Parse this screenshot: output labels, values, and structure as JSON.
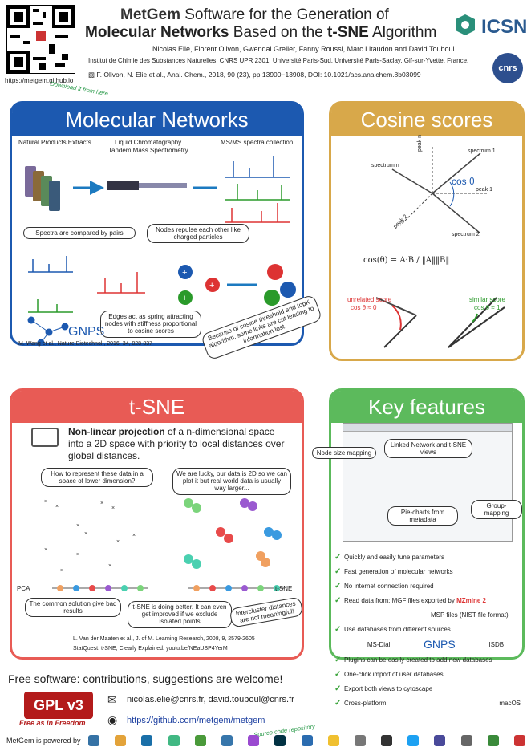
{
  "header": {
    "title_brand": "MetGem",
    "title_rest1": "Software for the Generation of",
    "title_bold1": "Molecular Networks",
    "title_mid": "Based on the",
    "title_bold2": "t-SNE",
    "title_end": "Algorithm",
    "authors": "Nicolas Elie, Florent Olivon, Gwendal Grelier, Fanny Roussi, Marc Litaudon and David Touboul",
    "institute": "Institut de Chimie des Substances Naturelles, CNRS UPR 2301, Université Paris-Sud, Université Paris-Saclay, Gif-sur-Yvette, France.",
    "citation": "F. Olivon, N. Elie et al., Anal. Chem., 2018, 90 (23), pp 13900−13908, DOI: 10.1021/acs.analchem.8b03099",
    "url": "https://metgem.github.io",
    "download": "Download it from here",
    "icsn": "ICSN",
    "cnrs": "cnrs"
  },
  "molecular_networks": {
    "title": "Molecular Networks",
    "step1": "Natural Products Extracts",
    "step2a": "Liquid Chromatography",
    "step2b": "Tandem Mass Spectrometry",
    "step3": "MS/MS spectra collection",
    "bubble_pairs": "Spectra are compared by pairs",
    "bubble_repulse": "Nodes repulse each other like charged particles",
    "bubble_spring": "Edges act as spring attracting nodes with stiffness proportional to cosine scores",
    "warning": "Because of cosine threshold and topK algorithm, some links are cut leading to information lost",
    "gnps": "GNPS",
    "ref": "M. Wang et al., Nature Biotechnol., 2016, 34, 828-837"
  },
  "cosine": {
    "title": "Cosine scores",
    "spectrum1": "spectrum 1",
    "spectrum2": "spectrum 2",
    "spectrumn": "spectrum n",
    "peak1": "peak 1",
    "peak2": "peak 2",
    "peakn": "peak n",
    "theta": "cos θ",
    "formula": "cos(θ) = A·B / ‖A‖‖B‖",
    "unrelated": "unrelated score",
    "unrelated_val": "cos θ ≈ 0",
    "similar": "similar score",
    "similar_val": "cos θ ≈ 1"
  },
  "tsne": {
    "title": "t-SNE",
    "desc_bold": "Non-linear projection",
    "desc": "of a n-dimensional space into a 2D space with priority to local distances over global distances.",
    "q1": "How to represent these data in a space of lower dimension?",
    "q2": "We are lucky, our data is 2D so we can plot it but real world data is usually way larger...",
    "pca": "PCA",
    "tsne_lbl": "t-SNE",
    "c1": "The common solution give bad results",
    "c2": "t-SNE is doing better. It can even get improved if we exclude isolated points",
    "c3": "Intercluster distances are not meaningful!",
    "ref1": "L. Van der Maaten et al., J. of M. Learning Research, 2008, 9, 2579-2605",
    "ref2": "StatQuest: t-SNE, Clearly Explained: youtu.be/NEaUSP4YerM"
  },
  "features": {
    "title": "Key features",
    "callouts": [
      "Node size mapping",
      "Linked Network and t-SNE views",
      "Pie-charts from metadata",
      "Group-mapping"
    ],
    "items": [
      "Quickly and easily tune parameters",
      "Fast generation of molecular networks",
      "No internet connection required",
      "Read data from: MGF files exported by",
      "MSP files (NIST file format)",
      "Use databases from different sources",
      "Plugins can be easily created to add new databases",
      "One-click import of user databases",
      "Export both views to cytoscape",
      "Cross-platform"
    ],
    "mzmine": "MZmine 2",
    "msdial": "MS-Dial",
    "gnps": "GNPS",
    "isdb": "ISDB",
    "macos": "macOS"
  },
  "footer": {
    "free": "Free software: contributions, suggestions are welcome!",
    "gpl": "GPL v3",
    "gpl_tag": "Free as in Freedom",
    "email": "nicolas.elie@cnrs.fr, david.touboul@cnrs.fr",
    "github": "https://github.com/metgem/metgem",
    "source": "Source code repository",
    "powered": "MetGem is powered by",
    "logo_colors": [
      "#3572a5",
      "#e3a33a",
      "#1a6fa8",
      "#41b883",
      "#4a9a3a",
      "#3776ab",
      "#9a4ad0",
      "#013243",
      "#2b6cb0",
      "#f0c030",
      "#777",
      "#333",
      "#1da1f2",
      "#4a4a9a",
      "#666",
      "#3a8a3a",
      "#c33"
    ]
  }
}
